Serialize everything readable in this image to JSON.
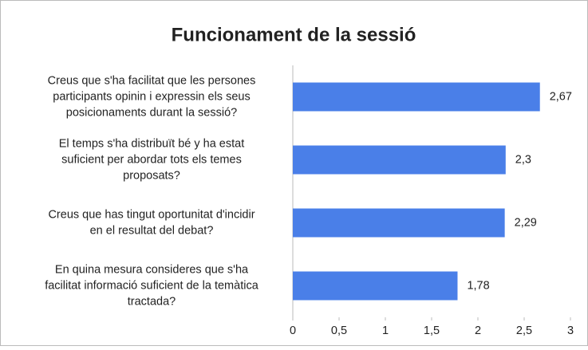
{
  "chart_data": {
    "type": "bar",
    "orientation": "horizontal",
    "title": "Funcionament de la sessió",
    "categories": [
      [
        "Creus que s'ha facilitat que les persones",
        "participants opinin i expressin els seus",
        "posicionaments durant la sessió?"
      ],
      [
        "El temps s'ha distribuït bé y ha estat",
        "suficient per abordar tots els temes",
        "proposats?"
      ],
      [
        "Creus que has tingut oportunitat d'incidir",
        "en el resultat del debat?"
      ],
      [
        "En quina mesura consideres que s'ha",
        "facilitat informació suficient de la temàtica",
        "tractada?"
      ]
    ],
    "values": [
      2.67,
      2.3,
      2.29,
      1.78
    ],
    "value_labels": [
      "2,67",
      "2,3",
      "2,29",
      "1,78"
    ],
    "color": "#4a7fe8",
    "xlim": [
      0,
      3
    ],
    "xticks": [
      0,
      {
        "value": 0.5,
        "label": "0,5"
      },
      1,
      {
        "value": 1.5,
        "label": "1,5"
      },
      2,
      {
        "value": 2.5,
        "label": "2,5"
      },
      3
    ],
    "grid": false
  }
}
